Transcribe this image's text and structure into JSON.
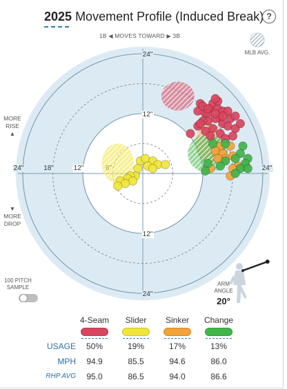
{
  "header": {
    "title_year": "2025",
    "title_rest": "Movement Profile (Induced Break)",
    "help_icon": "?"
  },
  "direction": {
    "left": "1B",
    "middle": "MOVES TOWARD",
    "right": "3B"
  },
  "mlb_legend_label": "MLB AVG.",
  "side_labels": {
    "more_rise": [
      "MORE",
      "RISE"
    ],
    "more_drop": [
      "MORE",
      "DROP"
    ]
  },
  "sample_toggle": {
    "label_1": "100 PITCH",
    "label_2": "SAMPLE",
    "state": "off"
  },
  "arm_angle": {
    "label_1": "ARM",
    "label_2": "ANGLE",
    "value": "20°",
    "degrees": 20
  },
  "table": {
    "pitches": [
      "4-Seam",
      "Slider",
      "Sinker",
      "Change"
    ],
    "colors": [
      "#d9455f",
      "#f0e53a",
      "#f4a23a",
      "#41b54a"
    ],
    "rows": [
      {
        "label": "USAGE",
        "values": [
          "50%",
          "19%",
          "17%",
          "13%"
        ]
      },
      {
        "label": "MPH",
        "values": [
          "94.9",
          "85.5",
          "94.6",
          "86.0"
        ]
      },
      {
        "label": "RHP AVG",
        "values": [
          "95.0",
          "86.5",
          "94.0",
          "86.6"
        ]
      }
    ]
  },
  "chart_data": {
    "type": "scatter",
    "title": "2025 Movement Profile (Induced Break)",
    "coordinate_system": "polar-radial, inches of break",
    "rings_inches": [
      6,
      12,
      18,
      24
    ],
    "ring_style": {
      "6": "dashed",
      "12": "solid",
      "18": "dashed",
      "24": "solid"
    },
    "horizontal_tick_labels": [
      "24\"",
      "18\"",
      "12\"",
      "6\"",
      "12\"",
      "24\""
    ],
    "horizontal_tick_values": [
      -24,
      -18,
      -12,
      -6,
      12,
      24
    ],
    "vertical_tick_labels": [
      "24\"",
      "12\"",
      "12\"",
      "24\""
    ],
    "vertical_tick_values": [
      24,
      12,
      -12,
      -24
    ],
    "xlim": [
      -25,
      25
    ],
    "ylim": [
      -25,
      25
    ],
    "xlabel_left": "1B",
    "xlabel_right": "3B",
    "ylabel_top": "MORE RISE",
    "ylabel_bottom": "MORE DROP",
    "mlb_averages": [
      {
        "pitch": "4-Seam",
        "x": 7,
        "y": 15.5,
        "rx": 3.3,
        "ry": 2.9
      },
      {
        "pitch": "Sinker",
        "x": 13.5,
        "y": 6,
        "rx": 3,
        "ry": 4
      },
      {
        "pitch": "Change",
        "x": 13,
        "y": 4,
        "rx": 4,
        "ry": 3.8
      },
      {
        "pitch": "Slider",
        "x": -5,
        "y": 2,
        "rx": 3.2,
        "ry": 4
      }
    ],
    "series": [
      {
        "name": "4-Seam",
        "color": "#d9455f",
        "points": [
          [
            11.5,
            14
          ],
          [
            11,
            12.5
          ],
          [
            12.5,
            12
          ],
          [
            12,
            13.5
          ],
          [
            13.5,
            13
          ],
          [
            14,
            14
          ],
          [
            13,
            12
          ],
          [
            15,
            13
          ],
          [
            16,
            12.5
          ],
          [
            17,
            12.5
          ],
          [
            15.5,
            11
          ],
          [
            14.5,
            11
          ],
          [
            13,
            10.5
          ],
          [
            16,
            10
          ],
          [
            17.5,
            11
          ],
          [
            18.5,
            11.5
          ],
          [
            17,
            9.5
          ],
          [
            15.5,
            8
          ],
          [
            14,
            9
          ],
          [
            11,
            9.5
          ],
          [
            12.5,
            8.5
          ],
          [
            9.5,
            8
          ],
          [
            18.5,
            9
          ],
          [
            19.5,
            10
          ],
          [
            18,
            7.5
          ],
          [
            16.5,
            7
          ],
          [
            13.5,
            7.5
          ],
          [
            13,
            13
          ],
          [
            14.5,
            12
          ],
          [
            16,
            11.5
          ],
          [
            15,
            14.5
          ],
          [
            12,
            10.5
          ],
          [
            11.5,
            10
          ],
          [
            14.5,
            15
          ]
        ]
      },
      {
        "name": "Slider",
        "color": "#f0e53a",
        "points": [
          [
            -0.5,
            2.5
          ],
          [
            0.5,
            3
          ],
          [
            2,
            2.5
          ],
          [
            3,
            1.8
          ],
          [
            4.5,
            1.8
          ],
          [
            1,
            1.5
          ],
          [
            -1,
            1
          ],
          [
            2,
            1
          ],
          [
            -1.5,
            -0.5
          ],
          [
            -2.5,
            -0.5
          ],
          [
            -3,
            -1
          ],
          [
            -4.5,
            -1.5
          ],
          [
            -2,
            -1.5
          ],
          [
            -3.5,
            -2
          ],
          [
            -5,
            -2.5
          ]
        ]
      },
      {
        "name": "Sinker",
        "color": "#f4a23a",
        "points": [
          [
            15.5,
            5.5
          ],
          [
            17.5,
            5.5
          ],
          [
            14.5,
            4.5
          ],
          [
            16,
            4
          ],
          [
            16.5,
            3
          ],
          [
            15,
            3
          ],
          [
            18,
            3.5
          ],
          [
            20.5,
            1.5
          ],
          [
            19,
            1.5
          ],
          [
            18,
            1
          ],
          [
            13.5,
            1
          ],
          [
            17.5,
            -0.5
          ]
        ]
      },
      {
        "name": "Change",
        "color": "#41b54a",
        "points": [
          [
            14,
            6
          ],
          [
            16.5,
            6
          ],
          [
            20,
            5.5
          ],
          [
            19.5,
            4
          ],
          [
            18.5,
            3
          ],
          [
            21,
            3
          ],
          [
            16.5,
            2.5
          ],
          [
            20.5,
            2
          ],
          [
            13,
            2
          ],
          [
            15.5,
            1.5
          ],
          [
            19.5,
            1
          ],
          [
            21,
            1
          ],
          [
            12.5,
            0.5
          ],
          [
            18.5,
            0
          ]
        ]
      }
    ]
  }
}
